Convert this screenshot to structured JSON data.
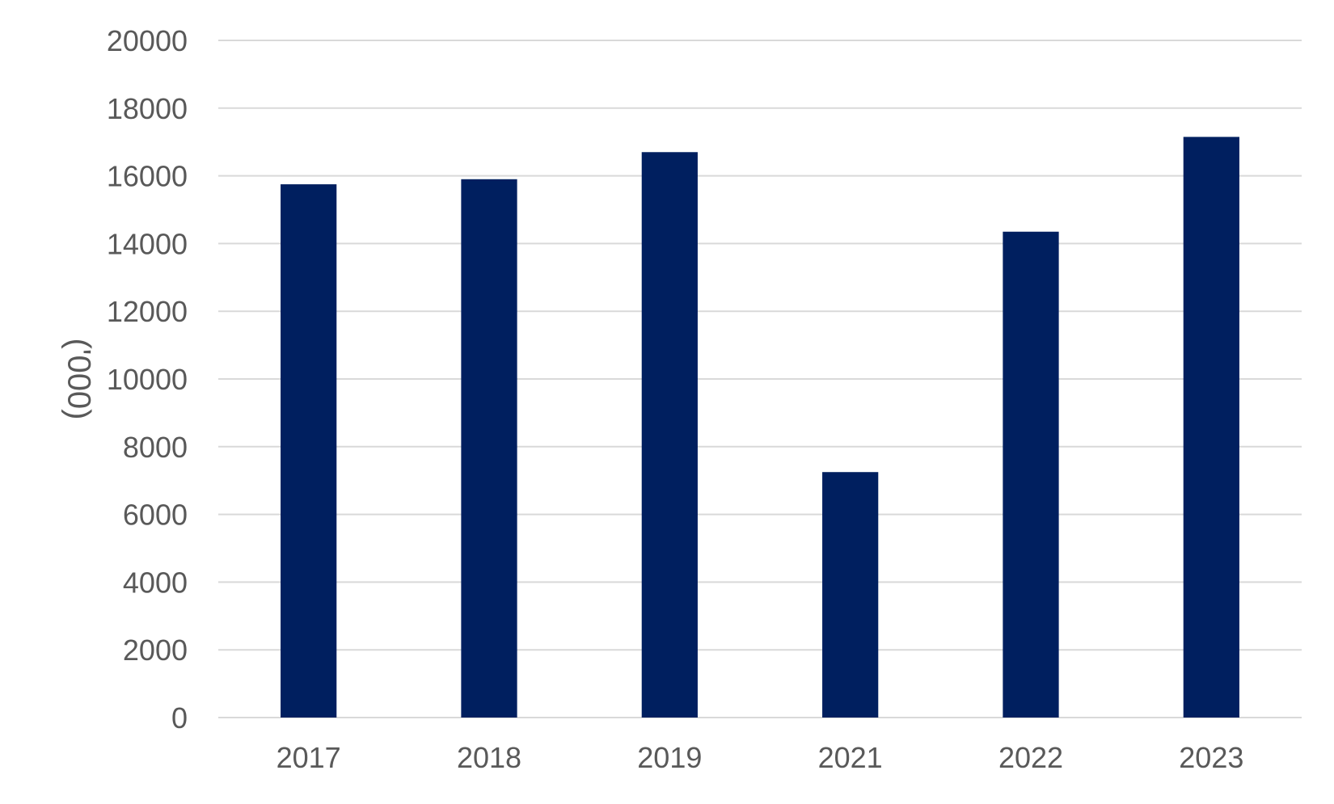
{
  "chart_data": {
    "type": "bar",
    "title": "",
    "xlabel": "",
    "ylabel": "('000)",
    "categories": [
      "2017",
      "2018",
      "2019",
      "2021",
      "2022",
      "2023"
    ],
    "values": [
      15750,
      15900,
      16700,
      7250,
      14350,
      17150
    ],
    "ylim": [
      0,
      20000
    ],
    "yticks": [
      0,
      2000,
      4000,
      6000,
      8000,
      10000,
      12000,
      14000,
      16000,
      18000,
      20000
    ],
    "grid": true,
    "legend": "none",
    "colors": {
      "bar": "#001f5f",
      "grid": "#d9d9d9",
      "text": "#595959"
    }
  }
}
